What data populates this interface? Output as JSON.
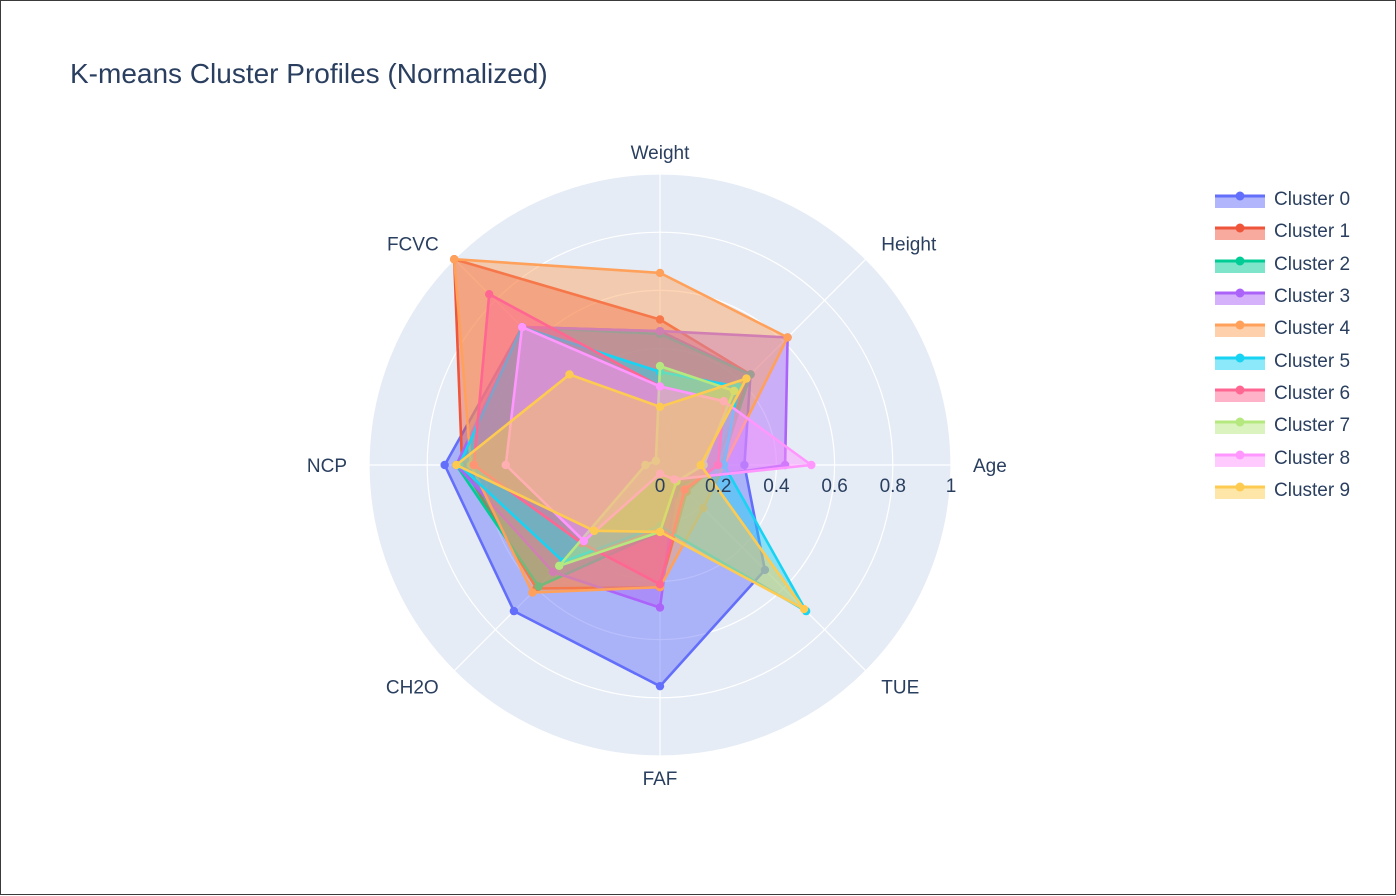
{
  "chart_data": {
    "type": "radar",
    "title": "K-means Cluster Profiles (Normalized)",
    "axes": [
      "Weight",
      "Height",
      "Age",
      "TUE",
      "FAF",
      "CH2O",
      "NCP",
      "FCVC"
    ],
    "radial_range": [
      0,
      1
    ],
    "radial_ticks": [
      "0",
      "0.2",
      "0.4",
      "0.6",
      "0.8",
      "1"
    ],
    "legend_position": "right",
    "grid": true,
    "series": [
      {
        "name": "Cluster 0",
        "color": "#636efa",
        "values": [
          0.46,
          0.44,
          0.29,
          0.51,
          0.76,
          0.71,
          0.74,
          0.67
        ]
      },
      {
        "name": "Cluster 1",
        "color": "#ef553b",
        "values": [
          0.5,
          0.44,
          0.19,
          0.13,
          0.42,
          0.6,
          0.68,
          1.0
        ]
      },
      {
        "name": "Cluster 2",
        "color": "#00cc96",
        "values": [
          0.45,
          0.44,
          0.21,
          0.1,
          0.23,
          0.59,
          0.7,
          0.67
        ]
      },
      {
        "name": "Cluster 3",
        "color": "#ab63fa",
        "values": [
          0.46,
          0.62,
          0.43,
          0.08,
          0.49,
          0.52,
          0.7,
          0.67
        ]
      },
      {
        "name": "Cluster 4",
        "color": "#ffa15a",
        "values": [
          0.66,
          0.62,
          0.22,
          0.21,
          0.42,
          0.62,
          0.65,
          1.0
        ]
      },
      {
        "name": "Cluster 5",
        "color": "#19d3f3",
        "values": [
          0.32,
          0.38,
          0.22,
          0.71,
          0.21,
          0.47,
          0.69,
          0.67
        ]
      },
      {
        "name": "Cluster 6",
        "color": "#ff6692",
        "values": [
          0.27,
          0.31,
          0.2,
          0.12,
          0.41,
          0.38,
          0.64,
          0.83
        ]
      },
      {
        "name": "Cluster 7",
        "color": "#b6e880",
        "values": [
          0.34,
          0.36,
          0.15,
          0.08,
          0.23,
          0.49,
          0.05,
          0.02
        ]
      },
      {
        "name": "Cluster 8",
        "color": "#ff97ff",
        "values": [
          0.27,
          0.31,
          0.52,
          0.07,
          0.03,
          0.37,
          0.53,
          0.67
        ]
      },
      {
        "name": "Cluster 9",
        "color": "#fecb52",
        "values": [
          0.2,
          0.42,
          0.14,
          0.7,
          0.23,
          0.32,
          0.7,
          0.44
        ]
      }
    ]
  }
}
